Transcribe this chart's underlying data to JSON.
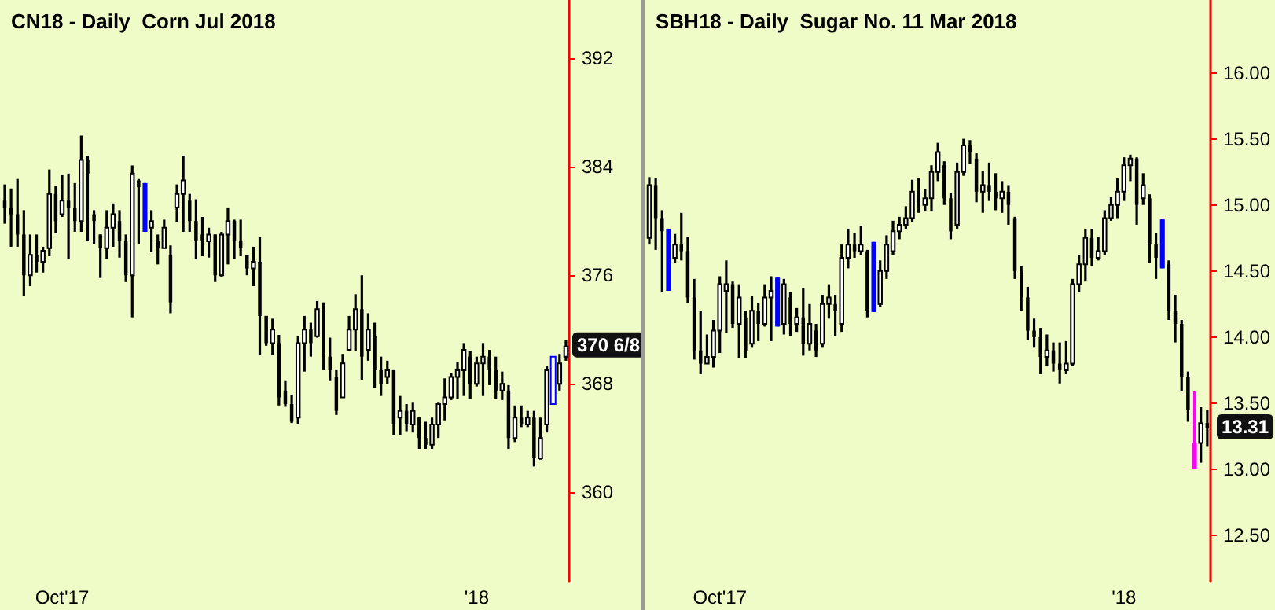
{
  "chart_data": [
    {
      "type": "candlestick",
      "title": "CN18 - Daily  Corn Jul 2018",
      "color": "#000000",
      "categories": [
        null,
        null,
        null,
        null,
        null,
        null,
        null,
        null,
        null,
        "Oct'17",
        null,
        null,
        null,
        null,
        null,
        null,
        null,
        null,
        null,
        null,
        null,
        null,
        null,
        null,
        null,
        null,
        null,
        null,
        null,
        null,
        null,
        null,
        null,
        null,
        null,
        null,
        null,
        null,
        null,
        null,
        null,
        null,
        null,
        null,
        null,
        null,
        null,
        null,
        null,
        null,
        null,
        null,
        null,
        null,
        null,
        null,
        null,
        null,
        null,
        null,
        null,
        null,
        null,
        null,
        null,
        null,
        null,
        null,
        null,
        null,
        null,
        null,
        null,
        null,
        "'18",
        null,
        null,
        null,
        null,
        null,
        null,
        null,
        null,
        null,
        null,
        null,
        null,
        null,
        null
      ],
      "ohlc": [
        [
          381.5,
          382.7,
          379.8,
          381.0
        ],
        [
          381.0,
          382.4,
          378.1,
          380.5
        ],
        [
          380.5,
          383.1,
          378.1,
          379.0
        ],
        [
          379.0,
          380.8,
          374.5,
          376.0
        ],
        [
          376.0,
          379.0,
          375.2,
          377.5
        ],
        [
          377.5,
          379.0,
          376.2,
          377.0
        ],
        [
          377.0,
          378.1,
          376.2,
          377.8
        ],
        [
          378.0,
          383.8,
          377.4,
          382.0
        ],
        [
          382.0,
          382.6,
          379.1,
          380.0
        ],
        [
          380.5,
          383.4,
          380.3,
          381.5
        ],
        [
          381.5,
          383.5,
          377.2,
          381.0
        ],
        [
          381.0,
          382.8,
          379.2,
          380.0
        ],
        [
          380.0,
          386.3,
          379.2,
          384.5
        ],
        [
          384.5,
          384.8,
          378.5,
          383.5
        ],
        [
          380.5,
          380.8,
          378.3,
          380.0
        ],
        [
          379.0,
          379.0,
          375.8,
          378.0
        ],
        [
          378.0,
          380.8,
          377.2,
          379.5
        ],
        [
          379.5,
          381.3,
          378.1,
          380.5
        ],
        [
          380.0,
          380.8,
          377.3,
          378.5
        ],
        [
          378.5,
          379.0,
          375.5,
          376.0
        ],
        [
          376.0,
          384.1,
          372.9,
          383.5
        ],
        [
          383.0,
          383.1,
          378.3,
          382.5
        ],
        [
          382.8,
          382.8,
          379.2,
          379.2
        ],
        [
          379.5,
          380.8,
          377.7,
          380.0
        ],
        [
          378.5,
          379.0,
          376.8,
          378.0
        ],
        [
          378.0,
          380.1,
          378.0,
          379.5
        ],
        [
          377.5,
          378.2,
          373.2,
          374.0
        ],
        [
          381.0,
          382.7,
          379.9,
          382.0
        ],
        [
          382.0,
          384.8,
          379.2,
          383.0
        ],
        [
          381.5,
          382.0,
          379.2,
          380.0
        ],
        [
          380.0,
          381.6,
          377.2,
          378.5
        ],
        [
          379.0,
          380.3,
          377.4,
          378.5
        ],
        [
          378.5,
          379.5,
          377.3,
          379.0
        ],
        [
          379.0,
          379.0,
          375.5,
          376.0
        ],
        [
          376.0,
          379.2,
          375.9,
          379.0
        ],
        [
          379.0,
          381.0,
          376.8,
          380.0
        ],
        [
          380.0,
          380.1,
          377.2,
          378.5
        ],
        [
          378.5,
          380.1,
          377.4,
          378.0
        ],
        [
          377.5,
          377.5,
          376.0,
          376.5
        ],
        [
          376.5,
          378.1,
          375.2,
          377.0
        ],
        [
          377.0,
          378.8,
          370.1,
          373.0
        ],
        [
          373.0,
          373.0,
          370.8,
          371.0
        ],
        [
          371.0,
          372.8,
          370.1,
          372.0
        ],
        [
          371.0,
          371.6,
          366.4,
          367.0
        ],
        [
          367.5,
          368.2,
          366.3,
          366.5
        ],
        [
          366.5,
          367.2,
          365.1,
          365.2
        ],
        [
          365.5,
          371.5,
          365.0,
          371.0
        ],
        [
          371.0,
          373.0,
          368.9,
          372.0
        ],
        [
          372.0,
          372.5,
          370.0,
          371.0
        ],
        [
          371.5,
          374.1,
          371.4,
          373.5
        ],
        [
          373.5,
          374.0,
          369.0,
          370.0
        ],
        [
          370.0,
          371.4,
          368.2,
          369.0
        ],
        [
          368.5,
          369.0,
          365.7,
          366.0
        ],
        [
          367.0,
          370.2,
          367.0,
          369.5
        ],
        [
          370.5,
          373.0,
          370.4,
          372.0
        ],
        [
          372.0,
          374.6,
          370.4,
          373.5
        ],
        [
          373.5,
          376.0,
          368.3,
          370.0
        ],
        [
          370.5,
          373.2,
          369.7,
          372.0
        ],
        [
          371.5,
          372.5,
          367.7,
          369.0
        ],
        [
          369.0,
          370.0,
          367.1,
          368.0
        ],
        [
          368.5,
          369.7,
          368.0,
          369.0
        ],
        [
          369.0,
          369.0,
          364.2,
          365.0
        ],
        [
          365.5,
          367.1,
          364.2,
          366.0
        ],
        [
          366.0,
          366.5,
          364.5,
          365.0
        ],
        [
          365.0,
          366.6,
          364.4,
          366.0
        ],
        [
          365.5,
          365.5,
          363.2,
          364.0
        ],
        [
          364.0,
          365.2,
          363.2,
          363.5
        ],
        [
          363.5,
          365.5,
          363.2,
          365.0
        ],
        [
          365.0,
          366.6,
          364.0,
          366.5
        ],
        [
          366.5,
          368.4,
          365.3,
          367.0
        ],
        [
          367.0,
          368.8,
          366.8,
          368.5
        ],
        [
          368.5,
          369.6,
          366.9,
          369.0
        ],
        [
          369.0,
          371.0,
          367.1,
          370.5
        ],
        [
          370.0,
          370.4,
          366.9,
          368.0
        ],
        [
          368.0,
          370.0,
          367.8,
          369.5
        ],
        [
          369.5,
          371.0,
          367.1,
          370.0
        ],
        [
          370.0,
          370.5,
          367.9,
          369.0
        ],
        [
          369.0,
          370.0,
          366.9,
          367.5
        ],
        [
          367.5,
          368.9,
          366.8,
          368.0
        ],
        [
          367.5,
          367.9,
          363.2,
          364.0
        ],
        [
          364.0,
          366.4,
          363.7,
          365.5
        ],
        [
          365.5,
          366.4,
          364.8,
          365.0
        ],
        [
          365.0,
          366.0,
          364.8,
          365.5
        ],
        [
          365.5,
          366.0,
          361.9,
          362.5
        ],
        [
          362.5,
          365.5,
          362.4,
          364.0
        ],
        [
          365.0,
          369.3,
          364.4,
          369.0
        ],
        [
          366.5,
          370.0,
          366.5,
          370.0
        ],
        [
          368.0,
          370.2,
          367.5,
          369.5
        ],
        [
          370.0,
          371.2,
          369.7,
          370.75
        ]
      ],
      "colors": [
        "#000000",
        "#000000",
        "#000000",
        "#000000",
        "#000000",
        "#000000",
        "#000000",
        "#000000",
        "#000000",
        "#000000",
        "#000000",
        "#000000",
        "#000000",
        "#000000",
        "#000000",
        "#000000",
        "#000000",
        "#000000",
        "#000000",
        "#000000",
        "#000000",
        "#000000",
        "#0000ff",
        "#000000",
        "#000000",
        "#000000",
        "#000000",
        "#000000",
        "#000000",
        "#000000",
        "#000000",
        "#000000",
        "#000000",
        "#000000",
        "#000000",
        "#000000",
        "#000000",
        "#000000",
        "#000000",
        "#000000",
        "#000000",
        "#000000",
        "#000000",
        "#000000",
        "#000000",
        "#000000",
        "#000000",
        "#000000",
        "#000000",
        "#000000",
        "#000000",
        "#000000",
        "#000000",
        "#000000",
        "#000000",
        "#000000",
        "#000000",
        "#000000",
        "#000000",
        "#000000",
        "#000000",
        "#000000",
        "#000000",
        "#000000",
        "#000000",
        "#000000",
        "#000000",
        "#000000",
        "#000000",
        "#000000",
        "#000000",
        "#000000",
        "#000000",
        "#000000",
        "#000000",
        "#000000",
        "#000000",
        "#000000",
        "#000000",
        "#000000",
        "#000000",
        "#000000",
        "#000000",
        "#000000",
        "#000000",
        "#000000",
        "#0000ff",
        "#000000",
        "#000000"
      ],
      "ylim": [
        353.4,
        396.3
      ],
      "yticks": [
        360,
        368,
        376,
        384,
        392
      ],
      "annotations": [
        "370 6/8"
      ]
    },
    {
      "type": "candlestick",
      "title": "SBH18 - Daily  Sugar No. 11 Mar 2018",
      "color": "#000000",
      "categories": [
        null,
        null,
        null,
        null,
        null,
        null,
        null,
        null,
        null,
        null,
        null,
        "Oct'17",
        null,
        null,
        null,
        null,
        null,
        null,
        null,
        null,
        null,
        null,
        null,
        null,
        null,
        null,
        null,
        null,
        null,
        null,
        null,
        null,
        null,
        null,
        null,
        null,
        null,
        null,
        null,
        null,
        null,
        null,
        null,
        null,
        null,
        null,
        null,
        null,
        null,
        null,
        null,
        null,
        null,
        null,
        null,
        null,
        null,
        null,
        null,
        null,
        null,
        null,
        null,
        null,
        null,
        null,
        null,
        null,
        null,
        null,
        null,
        null,
        null,
        null,
        "'18",
        null,
        null,
        null,
        null,
        null,
        null,
        null,
        null,
        null,
        null,
        null,
        null,
        null
      ],
      "ohlc": [
        [
          14.75,
          15.21,
          14.7,
          15.15
        ],
        [
          15.15,
          15.2,
          14.66,
          14.9
        ],
        [
          14.9,
          14.96,
          14.34,
          14.8
        ],
        [
          14.82,
          14.82,
          14.35,
          14.35
        ],
        [
          14.6,
          14.78,
          14.56,
          14.7
        ],
        [
          14.7,
          14.94,
          14.58,
          14.65
        ],
        [
          14.65,
          14.76,
          14.26,
          14.3
        ],
        [
          14.3,
          14.44,
          13.83,
          13.9
        ],
        [
          13.9,
          14.2,
          13.72,
          13.8
        ],
        [
          13.8,
          14.02,
          13.8,
          13.85
        ],
        [
          13.85,
          14.13,
          13.77,
          14.05
        ],
        [
          14.05,
          14.46,
          13.88,
          14.4
        ],
        [
          14.35,
          14.58,
          14.03,
          14.4
        ],
        [
          14.4,
          14.42,
          14.07,
          14.1
        ],
        [
          14.1,
          14.4,
          13.84,
          14.3
        ],
        [
          14.15,
          14.2,
          13.84,
          13.9
        ],
        [
          13.95,
          14.31,
          13.92,
          14.2
        ],
        [
          14.2,
          14.26,
          13.97,
          14.1
        ],
        [
          14.1,
          14.4,
          14.08,
          14.3
        ],
        [
          14.3,
          14.46,
          13.97,
          14.35
        ],
        [
          14.45,
          14.45,
          14.08,
          14.08
        ],
        [
          14.1,
          14.44,
          14.02,
          14.4
        ],
        [
          14.3,
          14.34,
          14.01,
          14.1
        ],
        [
          14.1,
          14.22,
          14.04,
          14.15
        ],
        [
          14.15,
          14.37,
          13.86,
          13.95
        ],
        [
          13.95,
          14.25,
          13.9,
          14.1
        ],
        [
          14.05,
          14.1,
          13.85,
          13.9
        ],
        [
          13.95,
          14.32,
          13.92,
          14.25
        ],
        [
          14.25,
          14.4,
          14.14,
          14.3
        ],
        [
          14.25,
          14.32,
          14.01,
          14.2
        ],
        [
          14.1,
          14.7,
          14.04,
          14.6
        ],
        [
          14.6,
          14.82,
          14.52,
          14.7
        ],
        [
          14.7,
          14.79,
          14.6,
          14.65
        ],
        [
          14.65,
          14.84,
          14.62,
          14.7
        ],
        [
          14.65,
          14.66,
          14.15,
          14.2
        ],
        [
          14.72,
          14.72,
          14.19,
          14.19
        ],
        [
          14.25,
          14.58,
          14.23,
          14.5
        ],
        [
          14.5,
          14.77,
          14.44,
          14.7
        ],
        [
          14.65,
          14.88,
          14.62,
          14.8
        ],
        [
          14.8,
          14.91,
          14.74,
          14.85
        ],
        [
          14.85,
          14.99,
          14.82,
          14.9
        ],
        [
          14.9,
          15.19,
          14.87,
          15.1
        ],
        [
          15.1,
          15.2,
          14.94,
          15.0
        ],
        [
          15.0,
          15.12,
          14.95,
          15.05
        ],
        [
          15.05,
          15.3,
          14.95,
          15.25
        ],
        [
          15.25,
          15.47,
          15.18,
          15.4
        ],
        [
          15.3,
          15.33,
          15.0,
          15.05
        ],
        [
          15.05,
          15.09,
          14.74,
          14.8
        ],
        [
          14.85,
          15.32,
          14.82,
          15.25
        ],
        [
          15.25,
          15.5,
          15.22,
          15.45
        ],
        [
          15.45,
          15.49,
          15.31,
          15.4
        ],
        [
          15.35,
          15.39,
          15.02,
          15.1
        ],
        [
          15.1,
          15.26,
          14.94,
          15.15
        ],
        [
          15.15,
          15.32,
          15.03,
          15.1
        ],
        [
          15.1,
          15.24,
          14.96,
          15.05
        ],
        [
          15.05,
          15.18,
          14.94,
          15.1
        ],
        [
          15.1,
          15.15,
          14.85,
          15.0
        ],
        [
          14.9,
          14.91,
          14.44,
          14.5
        ],
        [
          14.5,
          14.54,
          14.2,
          14.3
        ],
        [
          14.3,
          14.38,
          13.98,
          14.05
        ],
        [
          14.05,
          14.14,
          13.92,
          14.0
        ],
        [
          14.0,
          14.07,
          13.72,
          13.85
        ],
        [
          13.85,
          14.02,
          13.78,
          13.9
        ],
        [
          13.9,
          13.96,
          13.74,
          13.8
        ],
        [
          13.8,
          13.96,
          13.65,
          13.75
        ],
        [
          13.75,
          13.97,
          13.72,
          13.8
        ],
        [
          13.8,
          14.44,
          13.78,
          14.4
        ],
        [
          14.4,
          14.62,
          14.34,
          14.55
        ],
        [
          14.55,
          14.82,
          14.42,
          14.75
        ],
        [
          14.75,
          14.82,
          14.54,
          14.6
        ],
        [
          14.6,
          14.76,
          14.58,
          14.65
        ],
        [
          14.65,
          14.96,
          14.62,
          14.9
        ],
        [
          14.9,
          15.06,
          14.88,
          15.0
        ],
        [
          15.0,
          15.2,
          14.9,
          15.1
        ],
        [
          15.1,
          15.36,
          15.03,
          15.3
        ],
        [
          15.3,
          15.38,
          15.18,
          15.35
        ],
        [
          15.35,
          15.36,
          14.85,
          15.0
        ],
        [
          15.05,
          15.24,
          15.0,
          15.15
        ],
        [
          15.05,
          15.08,
          14.56,
          14.7
        ],
        [
          14.7,
          14.79,
          14.44,
          14.6
        ],
        [
          14.89,
          14.89,
          14.52,
          14.52
        ],
        [
          14.55,
          14.58,
          14.13,
          14.2
        ],
        [
          14.2,
          14.32,
          13.96,
          14.1
        ],
        [
          14.1,
          14.13,
          13.59,
          13.7
        ],
        [
          13.7,
          13.74,
          13.36,
          13.45
        ],
        [
          13.2,
          13.59,
          13.0,
          13.0
        ],
        [
          13.2,
          13.47,
          13.05,
          13.35
        ],
        [
          13.35,
          13.45,
          13.17,
          13.31
        ]
      ],
      "colors": [
        "#000000",
        "#000000",
        "#000000",
        "#0000ff",
        "#000000",
        "#000000",
        "#000000",
        "#000000",
        "#000000",
        "#000000",
        "#000000",
        "#000000",
        "#000000",
        "#000000",
        "#000000",
        "#000000",
        "#000000",
        "#000000",
        "#000000",
        "#000000",
        "#0000ff",
        "#000000",
        "#000000",
        "#000000",
        "#000000",
        "#000000",
        "#000000",
        "#000000",
        "#000000",
        "#000000",
        "#000000",
        "#000000",
        "#000000",
        "#000000",
        "#000000",
        "#0000ff",
        "#000000",
        "#000000",
        "#000000",
        "#000000",
        "#000000",
        "#000000",
        "#000000",
        "#000000",
        "#000000",
        "#000000",
        "#000000",
        "#000000",
        "#000000",
        "#000000",
        "#000000",
        "#000000",
        "#000000",
        "#000000",
        "#000000",
        "#000000",
        "#000000",
        "#000000",
        "#000000",
        "#000000",
        "#000000",
        "#000000",
        "#000000",
        "#000000",
        "#000000",
        "#000000",
        "#000000",
        "#000000",
        "#000000",
        "#000000",
        "#000000",
        "#000000",
        "#000000",
        "#000000",
        "#000000",
        "#000000",
        "#000000",
        "#000000",
        "#000000",
        "#000000",
        "#0000ff",
        "#000000",
        "#000000",
        "#000000",
        "#000000",
        "#ff00ff",
        "#000000",
        "#000000"
      ],
      "ylim": [
        12.15,
        16.55
      ],
      "yticks": [
        {
          "value": 12.5,
          "label": "12.50"
        },
        {
          "value": 13,
          "label": "13.00"
        },
        {
          "value": 13.5,
          "label": "13.50"
        },
        {
          "value": 14,
          "label": "14.00"
        },
        {
          "value": 14.5,
          "label": "14.50"
        },
        {
          "value": 15,
          "label": "15.00"
        },
        {
          "value": 15.5,
          "label": "15.50"
        },
        {
          "value": 16,
          "label": "16.00"
        }
      ],
      "annotations": [
        "13.31"
      ]
    }
  ]
}
